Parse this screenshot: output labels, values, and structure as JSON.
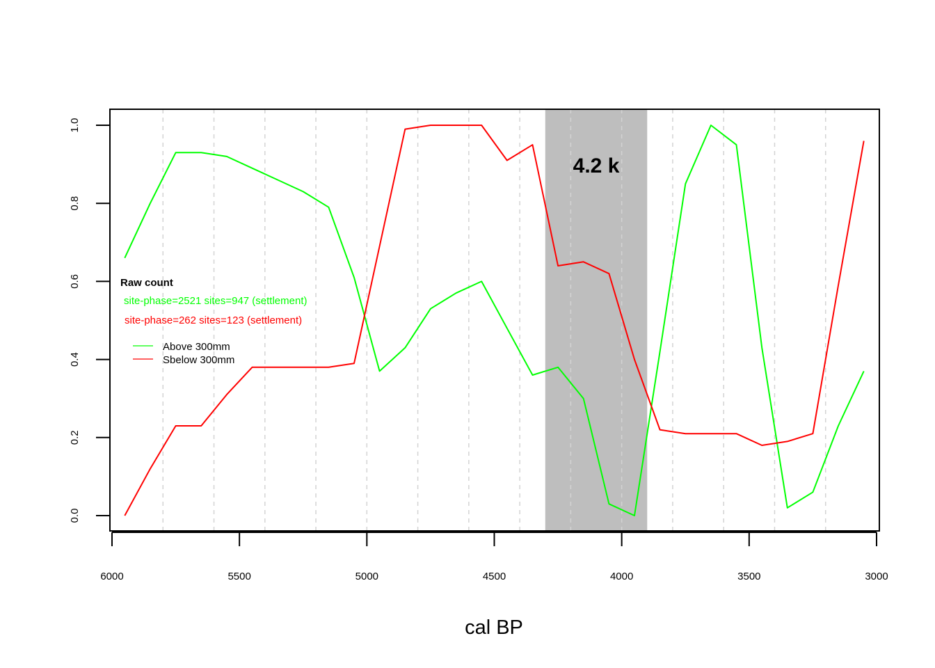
{
  "chart_data": {
    "type": "line",
    "title": "",
    "xlabel": "cal BP",
    "ylabel": "",
    "xlim": [
      6000,
      3000
    ],
    "ylim": [
      0.0,
      1.0
    ],
    "x_ticks": [
      6000,
      5500,
      5000,
      4500,
      4000,
      3500,
      3000
    ],
    "y_ticks": [
      0.0,
      0.2,
      0.4,
      0.6,
      0.8,
      1.0
    ],
    "x_tick_labels": [
      "6000",
      "5500",
      "5000",
      "4500",
      "4000",
      "3500",
      "3000"
    ],
    "y_tick_labels": [
      "0.0",
      "0.2",
      "0.4",
      "0.6",
      "0.8",
      "1.0"
    ],
    "grid": {
      "vertical_dashed_at": [
        5800,
        5600,
        5400,
        5200,
        5000,
        4800,
        4600,
        4400,
        4200,
        4000,
        3800,
        3600,
        3400,
        3200
      ]
    },
    "band": {
      "from": 4300,
      "to": 3900,
      "label": "4.2 k",
      "color": "#bebebe"
    },
    "annotation": {
      "heading": "Raw count",
      "lines": [
        {
          "text": "site-phase=2521 sites=947 (settlement)",
          "color": "#00ff00"
        },
        {
          "text": "site-phase=262 sites=123 (settlement)",
          "color": "#ff0000"
        }
      ]
    },
    "legend_position": "left",
    "series": [
      {
        "name": "Above 300mm",
        "color": "#00ff00",
        "x": [
          5950,
          5850,
          5750,
          5650,
          5550,
          5450,
          5350,
          5250,
          5150,
          5050,
          4950,
          4850,
          4750,
          4650,
          4550,
          4450,
          4350,
          4250,
          4150,
          4050,
          3950,
          3850,
          3750,
          3650,
          3550,
          3450,
          3350,
          3250,
          3150,
          3050
        ],
        "values": [
          0.66,
          0.8,
          0.93,
          0.93,
          0.92,
          0.89,
          0.86,
          0.83,
          0.79,
          0.61,
          0.37,
          0.43,
          0.53,
          0.57,
          0.6,
          0.48,
          0.36,
          0.38,
          0.3,
          0.03,
          0.0,
          0.42,
          0.85,
          1.0,
          0.95,
          0.43,
          0.02,
          0.06,
          0.23,
          0.37
        ]
      },
      {
        "name": "Sbelow 300mm",
        "color": "#ff0000",
        "x": [
          5950,
          5850,
          5750,
          5650,
          5550,
          5450,
          5350,
          5250,
          5150,
          5050,
          4950,
          4850,
          4750,
          4650,
          4550,
          4450,
          4350,
          4250,
          4150,
          4050,
          3950,
          3850,
          3750,
          3650,
          3550,
          3450,
          3350,
          3250,
          3150,
          3050
        ],
        "values": [
          0.0,
          0.12,
          0.23,
          0.23,
          0.31,
          0.38,
          0.38,
          0.38,
          0.38,
          0.39,
          0.69,
          0.99,
          1.0,
          1.0,
          1.0,
          0.91,
          0.95,
          0.64,
          0.65,
          0.62,
          0.4,
          0.22,
          0.21,
          0.21,
          0.21,
          0.18,
          0.19,
          0.21,
          0.59,
          0.96
        ]
      }
    ]
  }
}
